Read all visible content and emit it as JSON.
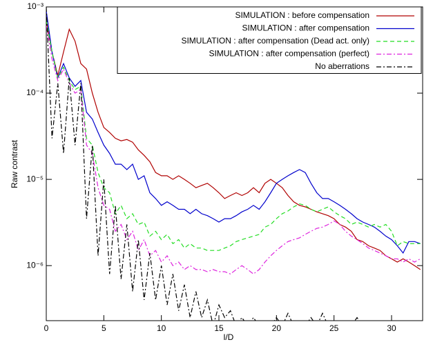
{
  "chart_data": {
    "type": "line",
    "xlabel": "l/D",
    "ylabel": "Raw contrast",
    "yscale": "log",
    "xlim": [
      0,
      32.7
    ],
    "ylim": [
      2.3e-07,
      0.001
    ],
    "xticks": [
      0,
      5,
      10,
      15,
      20,
      25,
      30
    ],
    "yticks": [
      {
        "value": 0.001,
        "label": "10⁻³"
      },
      {
        "value": 0.0001,
        "label": "10⁻⁴"
      },
      {
        "value": 1e-05,
        "label": "10⁻⁵"
      },
      {
        "value": 1e-06,
        "label": "10⁻⁶"
      }
    ],
    "legend": "upper right",
    "x": [
      0,
      0.5,
      1,
      1.5,
      2,
      2.5,
      3,
      3.5,
      4,
      4.5,
      5,
      5.5,
      6,
      6.5,
      7,
      7.5,
      8,
      8.5,
      9,
      9.5,
      10,
      10.5,
      11,
      11.5,
      12,
      12.5,
      13,
      13.5,
      14,
      14.5,
      15,
      15.5,
      16,
      16.5,
      17,
      17.5,
      18,
      18.5,
      19,
      19.5,
      20,
      20.5,
      21,
      21.5,
      22,
      22.5,
      23,
      23.5,
      24,
      24.5,
      25,
      25.5,
      26,
      26.5,
      27,
      27.5,
      28,
      28.5,
      29,
      29.5,
      30,
      30.5,
      31,
      31.5,
      32,
      32.5
    ],
    "series": [
      {
        "name": "SIMULATION : before compensation",
        "color": "#b00000",
        "linestyle": "solid",
        "values": [
          0.0007,
          0.0003,
          0.00016,
          0.0003,
          0.00055,
          0.0004,
          0.00022,
          0.00019,
          0.0001,
          6e-05,
          4e-05,
          3.5e-05,
          3e-05,
          2.8e-05,
          2.9e-05,
          2.7e-05,
          2.2e-05,
          1.9e-05,
          1.6e-05,
          1.2e-05,
          1.1e-05,
          1.1e-05,
          1e-05,
          1.1e-05,
          1e-05,
          9e-06,
          8e-06,
          8.5e-06,
          9e-06,
          8e-06,
          7e-06,
          6e-06,
          6.5e-06,
          7e-06,
          6.5e-06,
          7e-06,
          8e-06,
          7e-06,
          9e-06,
          1e-05,
          9e-06,
          8e-06,
          6.5e-06,
          5.5e-06,
          5e-06,
          4.8e-06,
          4.5e-06,
          4.2e-06,
          4e-06,
          3.8e-06,
          3.5e-06,
          3e-06,
          2.8e-06,
          2.5e-06,
          2e-06,
          1.9e-06,
          1.7e-06,
          1.6e-06,
          1.5e-06,
          1.3e-06,
          1.2e-06,
          1.1e-06,
          1.2e-06,
          1.1e-06,
          1e-06,
          9e-07
        ]
      },
      {
        "name": "SIMULATION : after compensation",
        "color": "#0000cc",
        "linestyle": "solid",
        "values": [
          0.0009,
          0.0003,
          0.00015,
          0.00022,
          0.00015,
          0.00012,
          0.00014,
          6e-05,
          5e-05,
          3.5e-05,
          2.5e-05,
          2e-05,
          1.5e-05,
          1.5e-05,
          1.3e-05,
          1.5e-05,
          1e-05,
          1.1e-05,
          7e-06,
          6e-06,
          5e-06,
          5.5e-06,
          5e-06,
          4.5e-06,
          4.5e-06,
          4e-06,
          4.5e-06,
          4e-06,
          3.8e-06,
          3.5e-06,
          3.2e-06,
          3.5e-06,
          3.5e-06,
          3.8e-06,
          4.2e-06,
          4.5e-06,
          5e-06,
          4.5e-06,
          5.5e-06,
          7e-06,
          9e-06,
          1e-05,
          1.1e-05,
          1.2e-05,
          1.3e-05,
          1.2e-05,
          9e-06,
          7e-06,
          6e-06,
          6e-06,
          5.5e-06,
          5e-06,
          4.5e-06,
          4e-06,
          3.5e-06,
          3.2e-06,
          3e-06,
          2.8e-06,
          2.5e-06,
          2.2e-06,
          2e-06,
          1.7e-06,
          1.4e-06,
          1.9e-06,
          1.9e-06,
          1.8e-06
        ]
      },
      {
        "name": "SIMULATION : after compensation (Dead act. only)",
        "color": "#22dd22",
        "linestyle": "dashed",
        "values": [
          0.0007,
          0.0003,
          0.00015,
          0.0002,
          0.00014,
          0.00011,
          0.00012,
          3e-05,
          2.5e-05,
          1.2e-05,
          8e-06,
          7e-06,
          4e-06,
          5e-06,
          3.5e-06,
          4e-06,
          3e-06,
          3.2e-06,
          2.2e-06,
          2.5e-06,
          2e-06,
          2.3e-06,
          1.8e-06,
          2e-06,
          1.6e-06,
          1.8e-06,
          1.6e-06,
          1.6e-06,
          1.5e-06,
          1.5e-06,
          1.5e-06,
          1.6e-06,
          1.7e-06,
          1.9e-06,
          2e-06,
          2.1e-06,
          2.2e-06,
          2.3e-06,
          2.8e-06,
          3e-06,
          3.5e-06,
          4e-06,
          4.3e-06,
          4.8e-06,
          5.2e-06,
          5e-06,
          4.5e-06,
          4.2e-06,
          4.5e-06,
          4.8e-06,
          4.2e-06,
          3.8e-06,
          3.5e-06,
          3e-06,
          3.2e-06,
          3e-06,
          2.8e-06,
          3e-06,
          2.8e-06,
          3e-06,
          2.5e-06,
          1.7e-06,
          1.9e-06,
          1.8e-06,
          1.8e-06,
          1.8e-06
        ]
      },
      {
        "name": "SIMULATION : after compensation (perfect)",
        "color": "#dd22dd",
        "linestyle": "dashdot",
        "values": [
          0.0006,
          0.00025,
          0.00014,
          0.00019,
          0.00013,
          0.0001,
          0.00011,
          2.5e-05,
          2e-05,
          8e-06,
          5e-06,
          4.5e-06,
          2.5e-06,
          3e-06,
          2e-06,
          2.5e-06,
          1.5e-06,
          2e-06,
          1.3e-06,
          1.5e-06,
          1.1e-06,
          1.3e-06,
          1e-06,
          1.1e-06,
          9e-07,
          1e-06,
          9e-07,
          9e-07,
          8.5e-07,
          9e-07,
          8.5e-07,
          8.5e-07,
          8e-07,
          9e-07,
          1e-06,
          9e-07,
          8e-07,
          9e-07,
          1.1e-06,
          1.3e-06,
          1.5e-06,
          1.7e-06,
          1.9e-06,
          2e-06,
          2.1e-06,
          2.3e-06,
          2.5e-06,
          2.7e-06,
          2.8e-06,
          3e-06,
          3.3e-06,
          3e-06,
          2.5e-06,
          2.2e-06,
          2e-06,
          1.8e-06,
          1.6e-06,
          1.5e-06,
          1.4e-06,
          1.3e-06,
          1.2e-06,
          1.2e-06,
          1.1e-06,
          1.2e-06,
          1.1e-06,
          1.2e-06
        ]
      },
      {
        "name": "No aberrations",
        "color": "#000000",
        "linestyle": "dashdot",
        "values": [
          0.001,
          3e-05,
          0.00013,
          2e-05,
          0.00015,
          2.5e-05,
          0.00013,
          3.5e-06,
          2.5e-05,
          1.3e-06,
          1e-05,
          8e-07,
          5e-06,
          7e-07,
          3e-06,
          5e-07,
          2e-06,
          4e-07,
          1.4e-06,
          4e-07,
          1e-06,
          3.5e-07,
          8e-07,
          3e-07,
          6e-07,
          2.5e-07,
          5e-07,
          2.5e-07,
          4e-07,
          2e-07,
          3.5e-07,
          2.5e-07,
          3e-07,
          2e-07,
          2.5e-07,
          2e-07,
          2.5e-07,
          2e-07,
          2.2e-07,
          2e-07,
          2.5e-07,
          2e-07,
          2.8e-07,
          2e-07,
          2.2e-07,
          2e-07,
          2.5e-07,
          2e-07,
          2.8e-07,
          2e-07,
          2.2e-07,
          2e-07,
          2.2e-07,
          2e-07,
          2.5e-07,
          2e-07,
          2.2e-07,
          2e-07,
          2.1e-07,
          2e-07,
          2.3e-07,
          2e-07,
          2e-07,
          2e-07,
          2e-07,
          2e-07
        ]
      }
    ]
  }
}
